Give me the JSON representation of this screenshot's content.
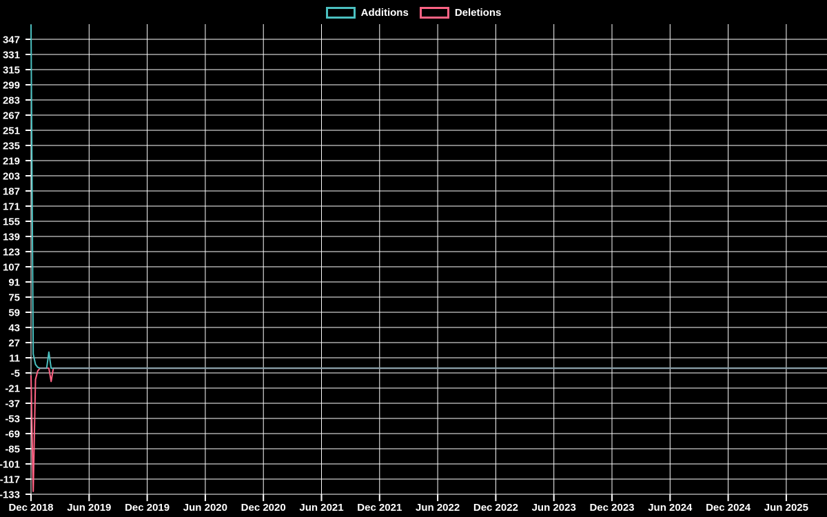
{
  "legend": {
    "items": [
      {
        "label": "Additions",
        "color": "#4bc0c0"
      },
      {
        "label": "Deletions",
        "color": "#ff6384"
      }
    ]
  },
  "chart_data": {
    "type": "line",
    "title": "",
    "xlabel": "",
    "ylabel": "",
    "background_color": "#000000",
    "grid": true,
    "grid_color": "#ffffff",
    "text_color": "#ffffff",
    "legend_position": "top",
    "x_tick_labels": [
      "Dec 2018",
      "Jun 2019",
      "Dec 2019",
      "Jun 2020",
      "Dec 2020",
      "Jun 2021",
      "Dec 2021",
      "Jun 2022",
      "Dec 2022",
      "Jun 2023",
      "Dec 2023",
      "Jun 2024",
      "Dec 2024",
      "Jun 2025"
    ],
    "y_tick_labels": [
      "347",
      "331",
      "315",
      "299",
      "283",
      "267",
      "251",
      "235",
      "219",
      "203",
      "187",
      "171",
      "155",
      "139",
      "123",
      "107",
      "91",
      "75",
      "59",
      "43",
      "27",
      "11",
      "-5",
      "-21",
      "-37",
      "-53",
      "-69",
      "-85",
      "-101",
      "-117",
      "-133"
    ],
    "y_axis": {
      "min": -133,
      "max": 347,
      "tick_step": 16,
      "top_edge_value": 363
    },
    "x_axis": {
      "unit": "week",
      "weeks_per_tick": 26,
      "total_weeks": 358
    },
    "series": [
      {
        "name": "Additions",
        "color": "#4bc0c0",
        "head_values": [
          362,
          15,
          4,
          1,
          0,
          0,
          0,
          0,
          17,
          0,
          0,
          0
        ],
        "fill_value": 0
      },
      {
        "name": "Deletions",
        "color": "#ff6384",
        "head_values": [
          -8,
          -130,
          -12,
          -3,
          0,
          0,
          0,
          0,
          0,
          -14,
          0,
          0
        ],
        "fill_value": 0
      }
    ],
    "overlap_color": "#8ca1ab"
  }
}
